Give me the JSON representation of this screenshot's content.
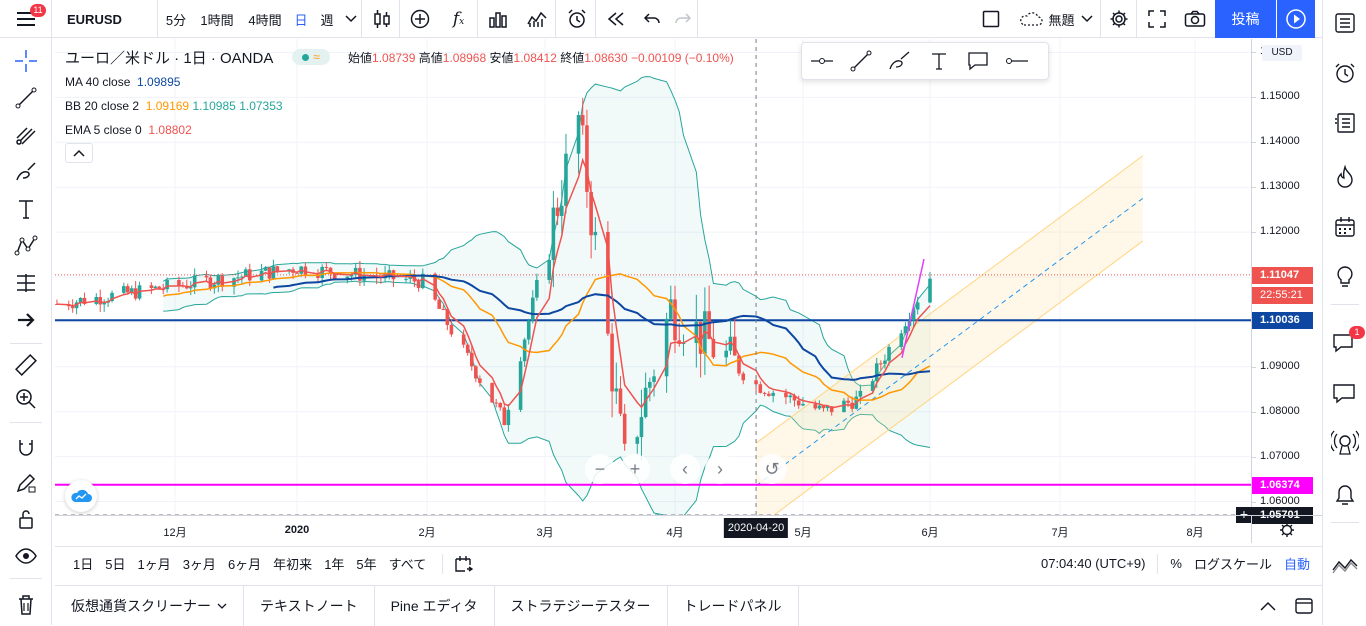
{
  "header": {
    "notification_count": "11",
    "symbol": "EURUSD",
    "intervals": [
      "5分",
      "1時間",
      "4時間",
      "日",
      "週"
    ],
    "active_interval": "日",
    "layout_name": "無題",
    "publish_label": "投稿"
  },
  "legend": {
    "title": "ユーロ／米ドル · 1日 · OANDA",
    "open_label": "始値",
    "open": "1.08739",
    "high_label": "高値",
    "high": "1.08968",
    "low_label": "安値",
    "low": "1.08412",
    "close_label": "終値",
    "close": "1.08630",
    "change": "−0.00109 (−0.10%)",
    "ma_label": "MA 40 close",
    "ma_value": "1.09895",
    "bb_label": "BB 20 close 2",
    "bb_basis": "1.09169",
    "bb_upper": "1.10985",
    "bb_lower": "1.07353",
    "ema_label": "EMA 5 close 0",
    "ema_value": "1.08802"
  },
  "price_axis": {
    "currency": "USD",
    "ticks": [
      "1.16000",
      "1.15000",
      "1.14000",
      "1.13000",
      "1.12000",
      "1.09000",
      "1.08000",
      "1.07000",
      "1.06000"
    ],
    "last_price": "1.11047",
    "countdown": "22:55:21",
    "hline_blue": "1.10036",
    "hline_magenta": "1.06374",
    "crosshair_price": "1.05701"
  },
  "time_axis": {
    "ticks": [
      "12月",
      "2020",
      "2月",
      "3月",
      "4月",
      "5月",
      "6月",
      "7月",
      "8月"
    ],
    "crosshair_date": "2020-04-20"
  },
  "range_bar": {
    "ranges": [
      "1日",
      "5日",
      "1ヶ月",
      "3ヶ月",
      "6ヶ月",
      "年初来",
      "1年",
      "5年",
      "すべて"
    ],
    "clock": "07:04:40 (UTC+9)",
    "percent_label": "%",
    "log_label": "ログスケール",
    "auto_label": "自動"
  },
  "bottom_tabs": [
    "仮想通貨スクリーナー",
    "テキストノート",
    "Pine エディタ",
    "ストラテジーテスター",
    "トレードパネル"
  ],
  "right_bar": {
    "chat_badge": "1"
  },
  "colors": {
    "accent": "#2962ff",
    "up": "#26a69a",
    "down": "#ef5350",
    "ma": "#0d47a1",
    "bb_basis": "#ff9800",
    "bb_band": "#26a69a",
    "hline_blue": "#0d47a1",
    "hline_magenta": "#ff00ff",
    "channel": "#ffe0a0"
  },
  "chart_data": {
    "type": "candlestick",
    "symbol": "EURUSD",
    "approx_close_path": [
      [
        "2019-11",
        1.104
      ],
      [
        "2019-12",
        1.108
      ],
      [
        "2020-01",
        1.112
      ],
      [
        "2020-01-31",
        1.109
      ],
      [
        "2020-02-20",
        1.078
      ],
      [
        "2020-03-09",
        1.145
      ],
      [
        "2020-03-20",
        1.068
      ],
      [
        "2020-03-31",
        1.103
      ],
      [
        "2020-04-20",
        1.086
      ],
      [
        "2020-05-06",
        1.08
      ],
      [
        "2020-05-15",
        1.083
      ],
      [
        "2020-06-01",
        1.11
      ]
    ],
    "ylim": [
      1.057,
      1.163
    ]
  }
}
